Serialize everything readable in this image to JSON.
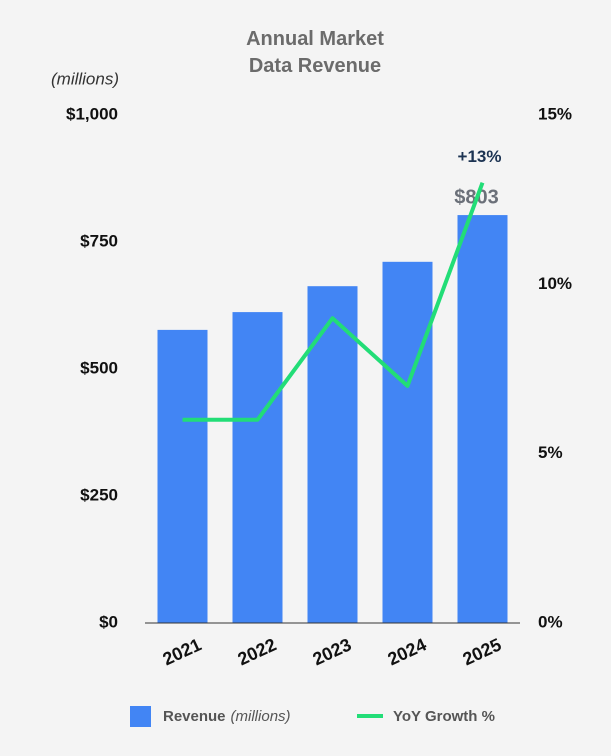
{
  "chart_data": {
    "type": "bar_line",
    "title": "Annual Market Data Revenue",
    "y_label": "(millions)",
    "categories": [
      "2021",
      "2022",
      "2023",
      "2024",
      "2025"
    ],
    "series": [
      {
        "name": "Revenue",
        "color": "#4285f4",
        "type": "bar",
        "values": [
          577,
          612,
          663,
          711,
          803
        ],
        "value_labels": [
          null,
          null,
          null,
          null,
          "$803"
        ]
      },
      {
        "name": "YoY Growth %",
        "color": "#22dd77",
        "type": "line",
        "axis": "y2",
        "values": [
          6,
          6,
          9,
          7,
          13
        ],
        "value_labels": [
          null,
          null,
          null,
          null,
          "+13%"
        ]
      }
    ],
    "ylim": [
      0,
      1000
    ],
    "yticks": [
      {
        "value": 0,
        "label": "$0"
      },
      {
        "value": 250,
        "label": "$250"
      },
      {
        "value": 500,
        "label": "$500"
      },
      {
        "value": 750,
        "label": "$750"
      },
      {
        "value": 1000,
        "label": "$1,000"
      }
    ],
    "y2lim": [
      0,
      15
    ],
    "y2ticks": [
      {
        "value": 0,
        "label": "0%"
      },
      {
        "value": 5,
        "label": "5%"
      },
      {
        "value": 10,
        "label": "10%"
      },
      {
        "value": 15,
        "label": "15%"
      }
    ],
    "grid": false,
    "legend": "bottom"
  }
}
